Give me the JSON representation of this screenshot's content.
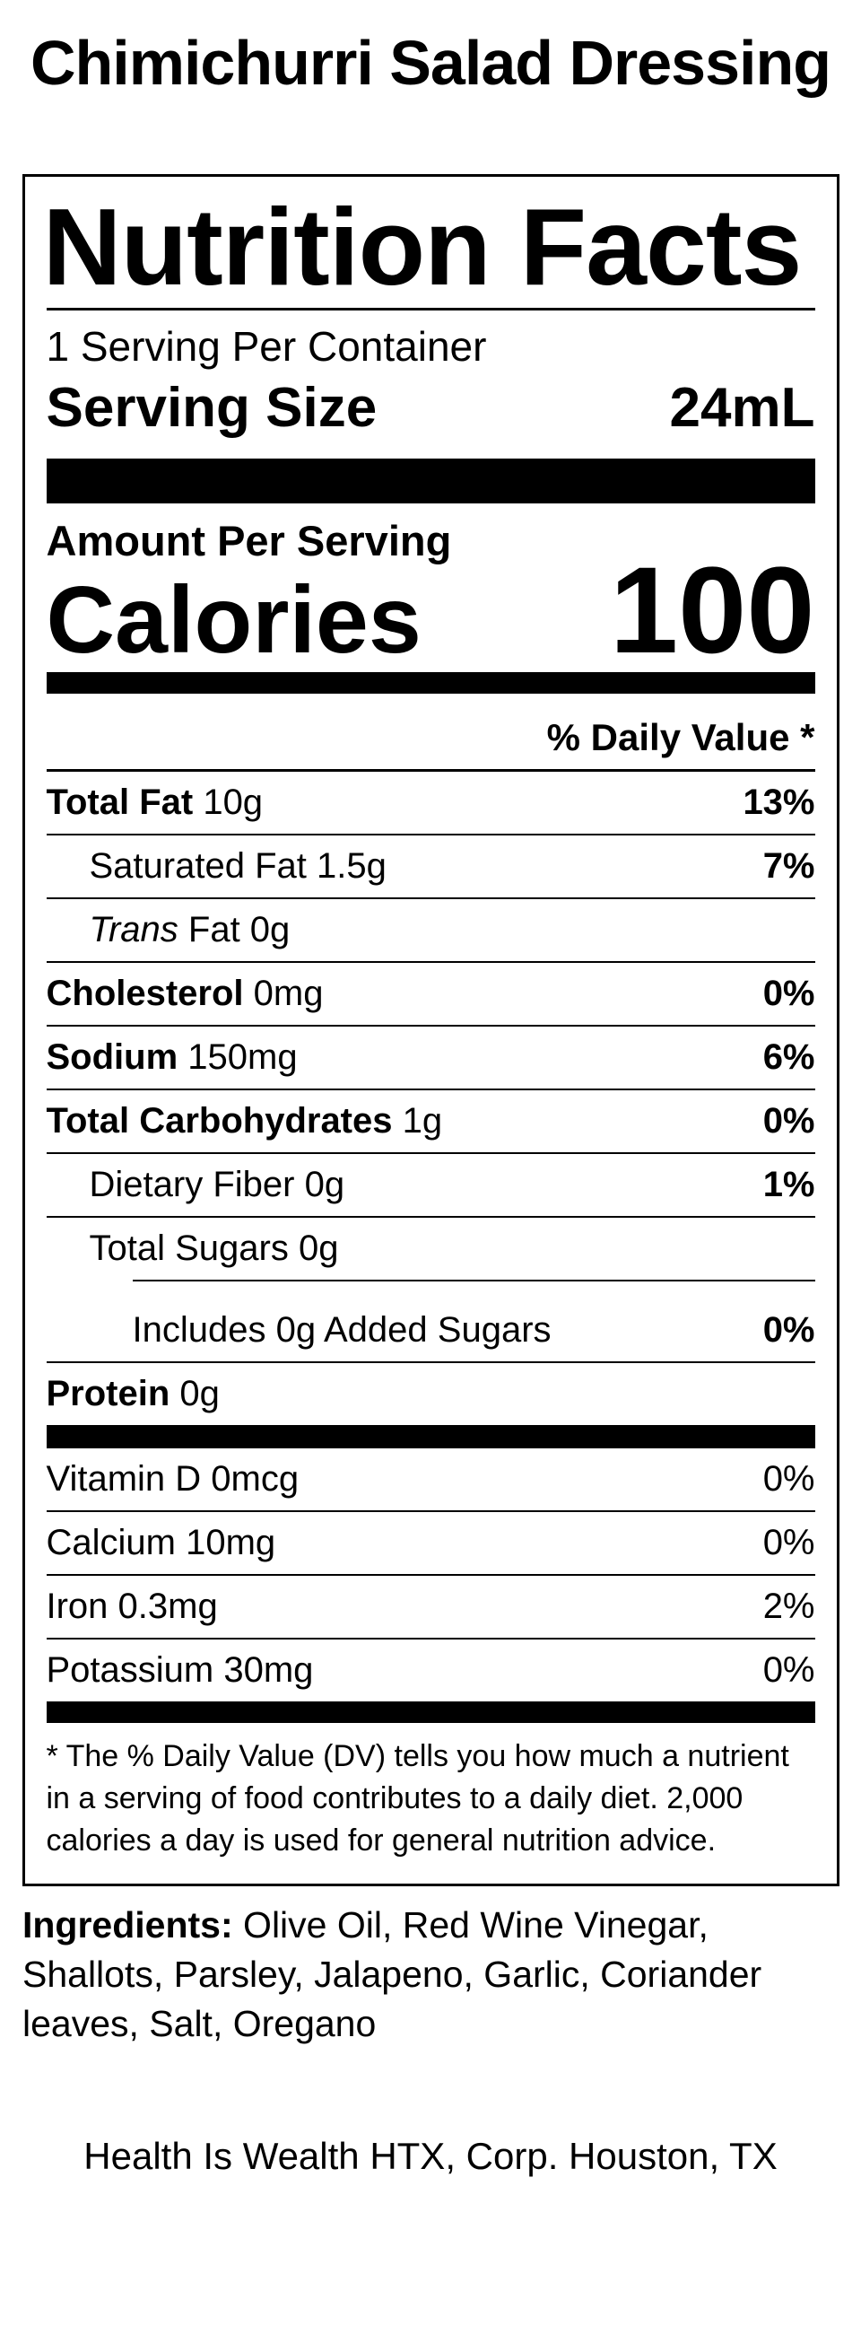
{
  "page": {
    "title": "Chimichurri Salad Dressing",
    "company": "Health Is Wealth HTX, Corp. Houston, TX"
  },
  "label": {
    "heading": "Nutrition Facts",
    "servings_per_container": "1 Serving Per Container",
    "serving_size_label": "Serving Size",
    "serving_size_value": "24mL",
    "amount_per_serving": "Amount Per Serving",
    "calories_label": "Calories",
    "calories_value": "100",
    "daily_value_header": "% Daily Value *",
    "nutrients": [
      {
        "name": "Total Fat",
        "amount": "10g",
        "dv": "13%",
        "name_bold": true,
        "indent": 0,
        "dv_bold": true,
        "divider": "full"
      },
      {
        "name": "Saturated Fat",
        "amount": "1.5g",
        "dv": "7%",
        "indent": 1,
        "dv_bold": true,
        "divider": "full"
      },
      {
        "name": "Trans",
        "name_italic": true,
        "amount": "Fat 0g",
        "dv": "",
        "indent": 1,
        "divider": "full"
      },
      {
        "name": "Cholesterol",
        "amount": "0mg",
        "dv": "0%",
        "name_bold": true,
        "indent": 0,
        "dv_bold": true,
        "divider": "full"
      },
      {
        "name": "Sodium",
        "amount": "150mg",
        "dv": "6%",
        "name_bold": true,
        "indent": 0,
        "dv_bold": true,
        "divider": "full"
      },
      {
        "name": "Total Carbohydrates",
        "amount": "1g",
        "dv": "0%",
        "name_bold": true,
        "indent": 0,
        "dv_bold": true,
        "divider": "full"
      },
      {
        "name": "Dietary Fiber",
        "amount": "0g",
        "dv": "1%",
        "indent": 1,
        "dv_bold": true,
        "divider": "full"
      },
      {
        "name": "Total Sugars",
        "amount": "0g",
        "dv": "",
        "indent": 1,
        "divider": "indented"
      },
      {
        "name": "Includes 0g Added Sugars",
        "amount": "",
        "dv": "0%",
        "indent": 2,
        "dv_bold": true,
        "divider": "full",
        "extra_top": true
      },
      {
        "name": "Protein",
        "amount": "0g",
        "dv": "",
        "name_bold": true,
        "indent": 0,
        "divider": "none"
      }
    ],
    "vitamins": [
      {
        "name": "Vitamin D",
        "amount": "0mcg",
        "dv": "0%"
      },
      {
        "name": "Calcium",
        "amount": "10mg",
        "dv": "0%"
      },
      {
        "name": "Iron",
        "amount": "0.3mg",
        "dv": "2%"
      },
      {
        "name": "Potassium",
        "amount": "30mg",
        "dv": "0%"
      }
    ],
    "footnote": "* The % Daily Value (DV) tells you how much a nutrient in a serving of food contributes to a daily diet. 2,000 calories a day is used for general nutrition advice."
  },
  "ingredients": {
    "label": "Ingredients:",
    "text": "Olive Oil, Red Wine Vinegar, Shallots, Parsley, Jalapeno, Garlic, Coriander leaves, Salt, Oregano"
  }
}
